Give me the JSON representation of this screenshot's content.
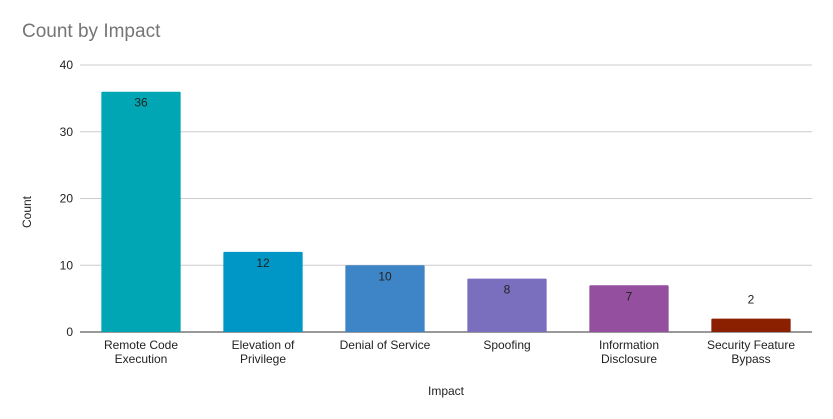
{
  "chart_data": {
    "type": "bar",
    "title": "Count by Impact",
    "xlabel": "Impact",
    "ylabel": "Count",
    "ylim": [
      0,
      40
    ],
    "yticks": [
      0,
      10,
      20,
      30,
      40
    ],
    "grid": true,
    "categories": [
      [
        "Remote Code",
        "Execution"
      ],
      [
        "Elevation of",
        "Privilege"
      ],
      [
        "Denial of Service"
      ],
      [
        "Spoofing"
      ],
      [
        "Information",
        "Disclosure"
      ],
      [
        "Security Feature",
        "Bypass"
      ]
    ],
    "values": [
      36,
      12,
      10,
      8,
      7,
      2
    ],
    "colors": [
      "#00a6b4",
      "#0097c7",
      "#3d85c6",
      "#7a6fbf",
      "#944f9e",
      "#8a2000"
    ]
  }
}
